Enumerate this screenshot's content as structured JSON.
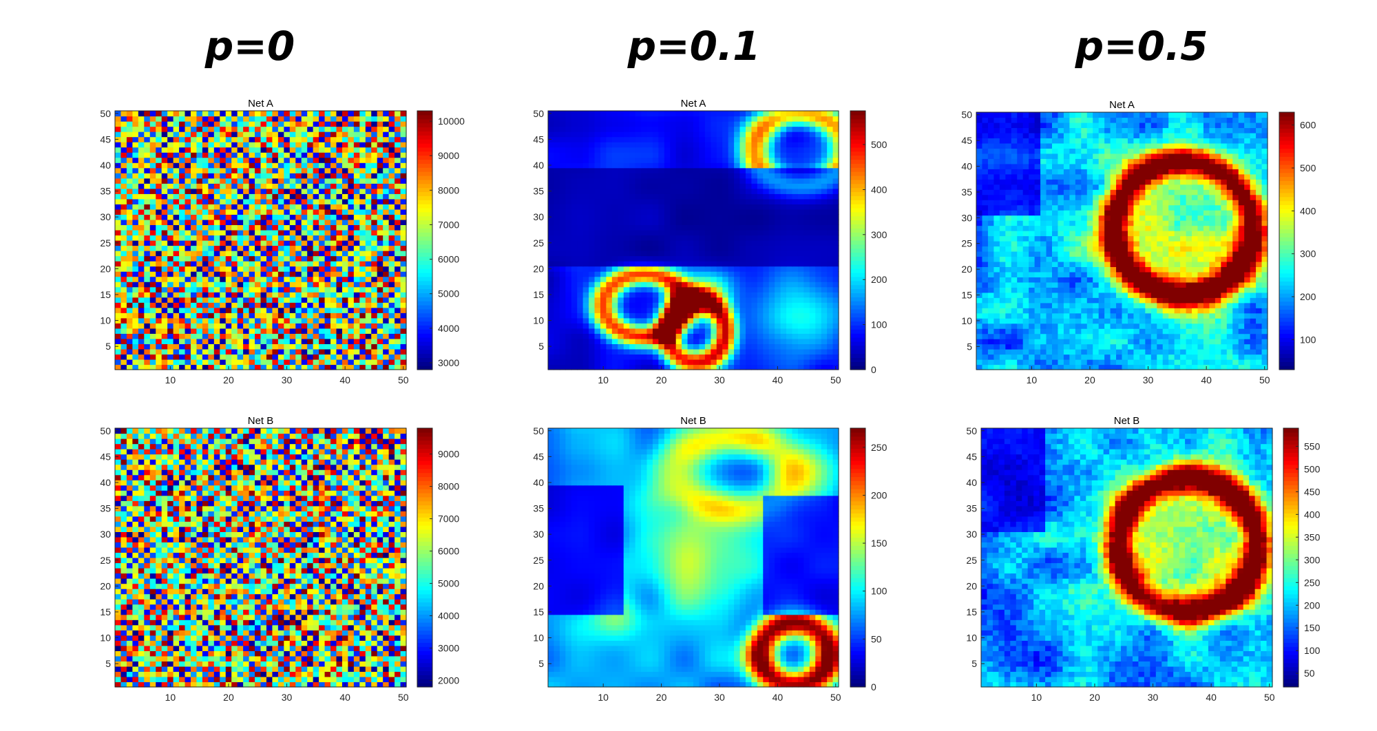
{
  "columns": [
    {
      "title": "p=0"
    },
    {
      "title": "p=0.1"
    },
    {
      "title": "p=0.5"
    }
  ],
  "chart_data": [
    {
      "type": "heatmap",
      "title": "Net A",
      "xticks": [
        10,
        20,
        30,
        40,
        50
      ],
      "yticks": [
        5,
        10,
        15,
        20,
        25,
        30,
        35,
        40,
        45,
        50
      ],
      "grid_size": 50,
      "pattern": "checkerboard",
      "colormap": "jet",
      "clim": [
        2800,
        10300
      ],
      "colorbar_ticks": [
        3000,
        4000,
        5000,
        6000,
        7000,
        8000,
        9000,
        10000
      ]
    },
    {
      "type": "heatmap",
      "title": "Net A",
      "xticks": [
        10,
        20,
        30,
        40,
        50
      ],
      "yticks": [
        5,
        10,
        15,
        20,
        25,
        30,
        35,
        40,
        45,
        50
      ],
      "grid_size": 50,
      "pattern": "smooth",
      "colormap": "jet",
      "clim": [
        0,
        575
      ],
      "colorbar_ticks": [
        0,
        100,
        200,
        300,
        400,
        500
      ]
    },
    {
      "type": "heatmap",
      "title": "Net A",
      "xticks": [
        10,
        20,
        30,
        40,
        50
      ],
      "yticks": [
        5,
        10,
        15,
        20,
        25,
        30,
        35,
        40,
        45,
        50
      ],
      "grid_size": 50,
      "pattern": "ring",
      "colormap": "jet",
      "clim": [
        30,
        630
      ],
      "colorbar_ticks": [
        100,
        200,
        300,
        400,
        500,
        600
      ]
    },
    {
      "type": "heatmap",
      "title": "Net B",
      "xticks": [
        10,
        20,
        30,
        40,
        50
      ],
      "yticks": [
        5,
        10,
        15,
        20,
        25,
        30,
        35,
        40,
        45,
        50
      ],
      "grid_size": 50,
      "pattern": "checkerboard",
      "colormap": "jet",
      "clim": [
        1800,
        9800
      ],
      "colorbar_ticks": [
        2000,
        3000,
        4000,
        5000,
        6000,
        7000,
        8000,
        9000
      ]
    },
    {
      "type": "heatmap",
      "title": "Net B",
      "xticks": [
        10,
        20,
        30,
        40,
        50
      ],
      "yticks": [
        5,
        10,
        15,
        20,
        25,
        30,
        35,
        40,
        45,
        50
      ],
      "grid_size": 50,
      "pattern": "smooth",
      "colormap": "jet",
      "clim": [
        0,
        270
      ],
      "colorbar_ticks": [
        0,
        50,
        100,
        150,
        200,
        250
      ]
    },
    {
      "type": "heatmap",
      "title": "Net B",
      "xticks": [
        10,
        20,
        30,
        40,
        50
      ],
      "yticks": [
        5,
        10,
        15,
        20,
        25,
        30,
        35,
        40,
        45,
        50
      ],
      "grid_size": 50,
      "pattern": "ring",
      "colormap": "jet",
      "clim": [
        20,
        590
      ],
      "colorbar_ticks": [
        50,
        100,
        150,
        200,
        250,
        300,
        350,
        400,
        450,
        500,
        550
      ]
    }
  ]
}
